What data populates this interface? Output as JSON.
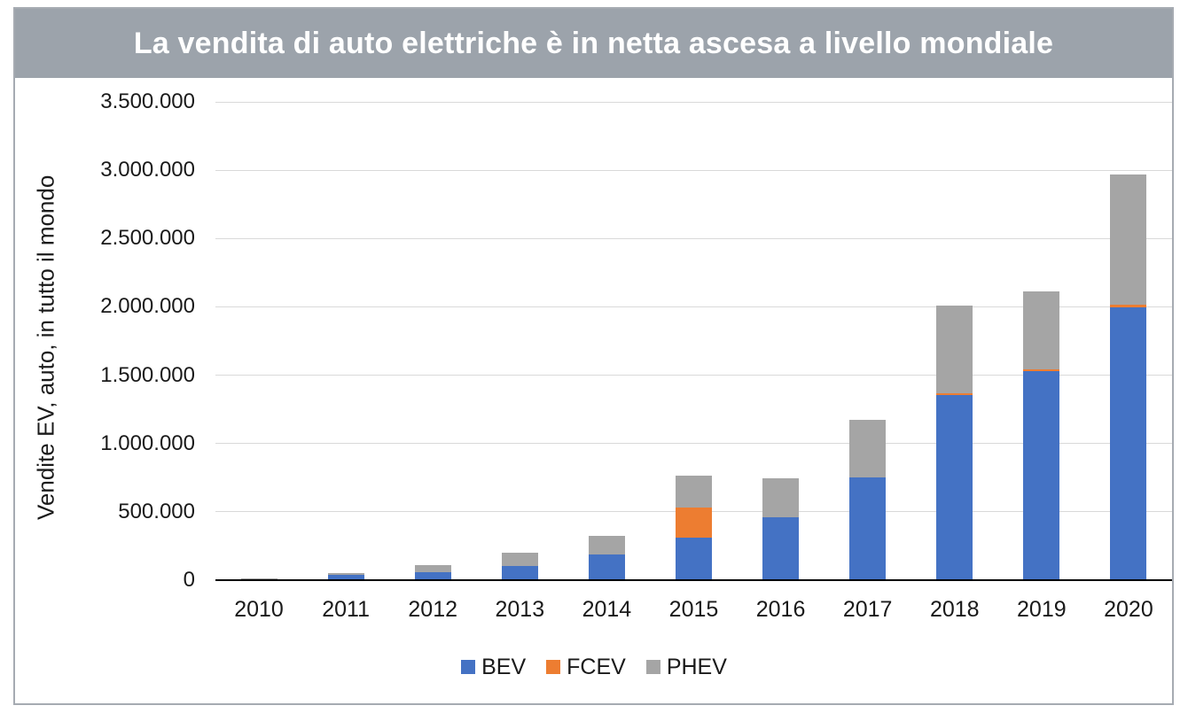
{
  "colors": {
    "frame_border": "#A6ABB2",
    "title_bg": "#9CA3AB",
    "title_fg": "#FFFFFF",
    "gridline": "#D9D9D9",
    "axis": "#000000",
    "text": "#1A1A1A",
    "bev": "#4472C4",
    "fcev": "#ED7D31",
    "phev": "#A5A5A5"
  },
  "chart_data": {
    "type": "bar",
    "stacked": true,
    "title": "La vendita di auto elettriche è in netta ascesa a livello mondiale",
    "ylabel": "Vendite EV, auto, in tutto il mondo",
    "xlabel": "",
    "categories": [
      "2010",
      "2011",
      "2012",
      "2013",
      "2014",
      "2015",
      "2016",
      "2017",
      "2018",
      "2019",
      "2020"
    ],
    "series": [
      {
        "name": "BEV",
        "color": "#4472C4",
        "values": [
          7000,
          40000,
          60000,
          105000,
          190000,
          311000,
          462000,
          750000,
          1356000,
          1530000,
          1997000
        ]
      },
      {
        "name": "FCEV",
        "color": "#ED7D31",
        "values": [
          0,
          0,
          0,
          0,
          0,
          222000,
          0,
          0,
          12000,
          11000,
          19000
        ]
      },
      {
        "name": "PHEV",
        "color": "#A5A5A5",
        "values": [
          7000,
          9000,
          52000,
          97000,
          135000,
          232000,
          284000,
          422000,
          642000,
          570000,
          955000
        ]
      }
    ],
    "ylim": [
      0,
      3500000
    ],
    "ytick_step": 500000,
    "ytick_labels": [
      "0",
      "500.000",
      "1.000.000",
      "1.500.000",
      "2.000.000",
      "2.500.000",
      "3.000.000",
      "3.500.000"
    ],
    "grid": true,
    "legend_position": "bottom"
  }
}
